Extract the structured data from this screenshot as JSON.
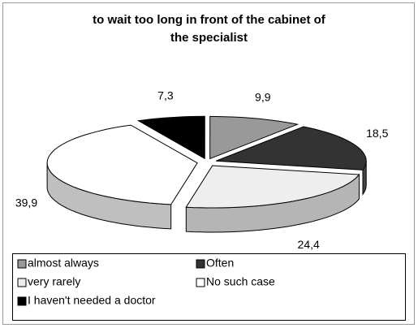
{
  "chart_data": {
    "type": "pie",
    "title": "to wait too long in front of the cabinet of the specialist",
    "categories": [
      "almost always",
      "Often",
      "very rarely",
      "No such case",
      "I haven't needed a doctor"
    ],
    "values": [
      9.9,
      18.5,
      24.4,
      39.9,
      7.3
    ],
    "value_labels": [
      "9,9",
      "18,5",
      "24,4",
      "39,9",
      "7,3"
    ],
    "colors": [
      "#999999",
      "#333333",
      "#eeeeee",
      "#ffffff",
      "#000000"
    ],
    "legend": "bottom"
  }
}
